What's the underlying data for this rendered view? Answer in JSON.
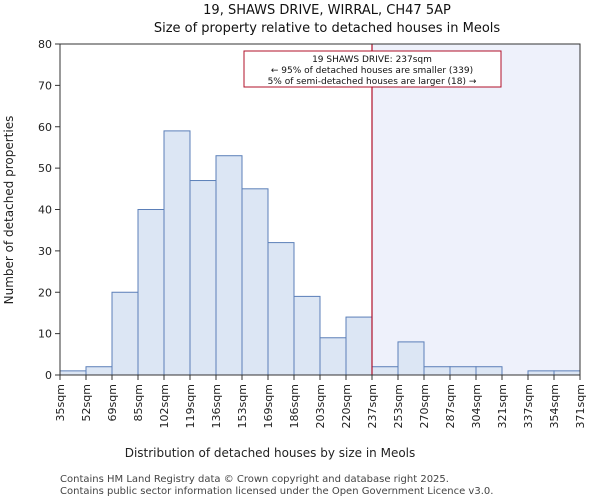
{
  "chart_data": {
    "type": "bar",
    "title": "19, SHAWS DRIVE, WIRRAL, CH47 5AP",
    "subtitle": "Size of property relative to detached houses in Meols",
    "xlabel": "Distribution of detached houses by size in Meols",
    "ylabel": "Number of detached properties",
    "ylim": [
      0,
      80
    ],
    "yticks": [
      0,
      10,
      20,
      30,
      40,
      50,
      60,
      70,
      80
    ],
    "bin_edges": [
      35,
      52,
      69,
      85,
      102,
      119,
      136,
      153,
      169,
      186,
      203,
      220,
      237,
      253,
      270,
      287,
      304,
      321,
      337,
      354,
      371
    ],
    "tick_labels": [
      "35sqm",
      "52sqm",
      "69sqm",
      "85sqm",
      "102sqm",
      "119sqm",
      "136sqm",
      "153sqm",
      "169sqm",
      "186sqm",
      "203sqm",
      "220sqm",
      "237sqm",
      "253sqm",
      "270sqm",
      "287sqm",
      "304sqm",
      "321sqm",
      "337sqm",
      "354sqm",
      "371sqm"
    ],
    "values": [
      1,
      2,
      20,
      40,
      59,
      47,
      53,
      45,
      32,
      19,
      9,
      14,
      2,
      8,
      2,
      2,
      2,
      0,
      1,
      1
    ],
    "marker_value": 237,
    "grid": false,
    "colors": {
      "bar_fill": "#dce6f4",
      "bar_edge": "#5b7fb8",
      "marker": "#b0102a",
      "highlight": "#eef1fb"
    },
    "annotation": {
      "line1": "19 SHAWS DRIVE: 237sqm",
      "line2": "← 95% of detached houses are smaller (339)",
      "line3": "5% of semi-detached houses are larger (18) →"
    }
  },
  "footer": {
    "line1": "Contains HM Land Registry data © Crown copyright and database right 2025.",
    "line2": "Contains public sector information licensed under the Open Government Licence v3.0."
  }
}
